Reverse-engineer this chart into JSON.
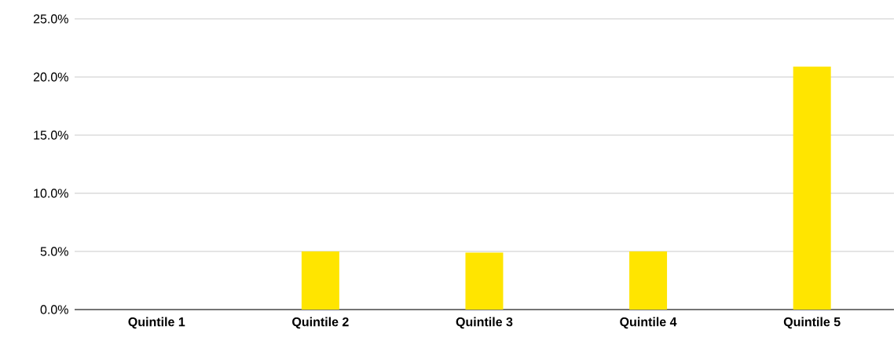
{
  "chart_data": {
    "type": "bar",
    "categories": [
      "Quintile 1",
      "Quintile 2",
      "Quintile 3",
      "Quintile 4",
      "Quintile 5"
    ],
    "values": [
      0,
      5.0,
      4.9,
      5.0,
      20.9
    ],
    "color": "#ffe500",
    "ylim": [
      0,
      25
    ],
    "yticks": [
      {
        "value": 0,
        "label": "0.0%"
      },
      {
        "value": 5,
        "label": "5.0%"
      },
      {
        "value": 10,
        "label": "10.0%"
      },
      {
        "value": 15,
        "label": "15.0%"
      },
      {
        "value": 20,
        "label": "20.0%"
      },
      {
        "value": 25,
        "label": "25.0%"
      }
    ],
    "grid": "y"
  }
}
